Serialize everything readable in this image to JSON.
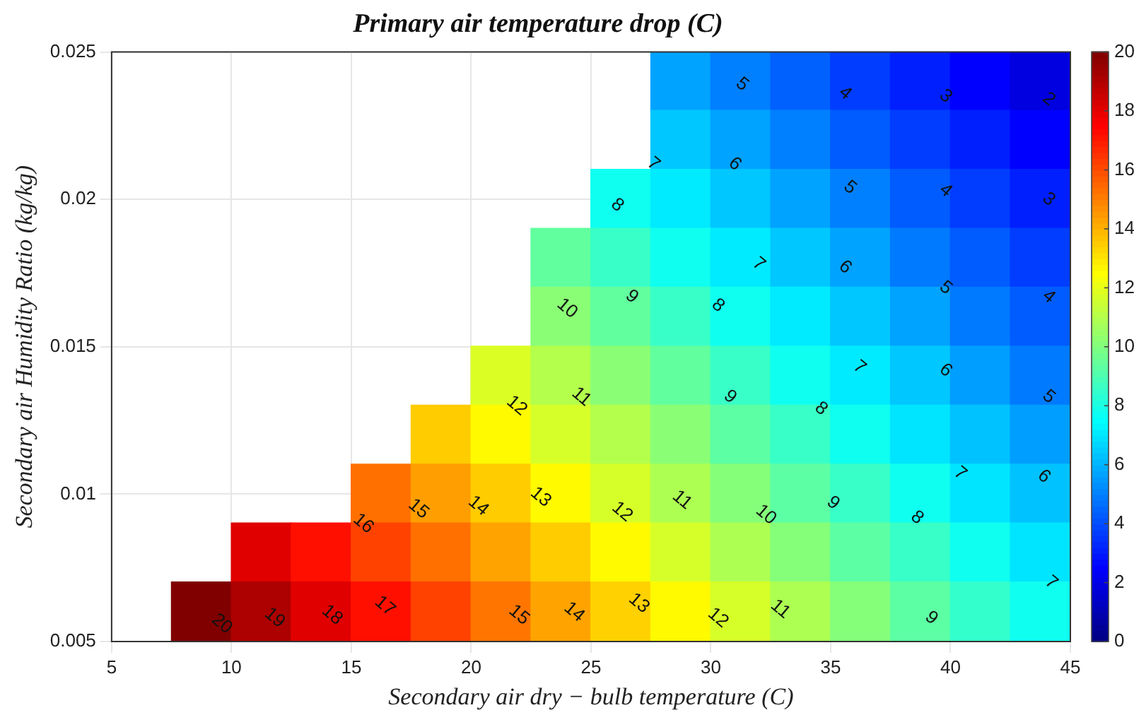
{
  "chart_data": {
    "type": "scatter",
    "title": "Primary air temperature drop (C)",
    "xlabel": "Secondary air dry − bulb temperature (C)",
    "ylabel": "Secondary air Humidity Ratio (kg/kg)",
    "marker": "square",
    "x": [
      28.75,
      31.25,
      33.75,
      36.25,
      38.75,
      41.25,
      43.75,
      28.75,
      31.25,
      33.75,
      36.25,
      38.75,
      41.25,
      43.75,
      26.25,
      28.75,
      31.25,
      33.75,
      36.25,
      38.75,
      41.25,
      43.75,
      23.75,
      26.25,
      28.75,
      31.25,
      33.75,
      36.25,
      38.75,
      41.25,
      43.75,
      23.75,
      26.25,
      28.75,
      31.25,
      33.75,
      36.25,
      38.75,
      41.25,
      43.75,
      21.25,
      23.75,
      26.25,
      28.75,
      31.25,
      33.75,
      36.25,
      38.75,
      41.25,
      43.75,
      18.75,
      21.25,
      23.75,
      26.25,
      28.75,
      31.25,
      33.75,
      36.25,
      38.75,
      41.25,
      43.75,
      16.25,
      18.75,
      21.25,
      23.75,
      26.25,
      28.75,
      31.25,
      33.75,
      36.25,
      38.75,
      41.25,
      43.75,
      11.25,
      13.75,
      16.25,
      18.75,
      21.25,
      23.75,
      26.25,
      28.75,
      31.25,
      33.75,
      36.25,
      38.75,
      41.25,
      43.75,
      8.75,
      11.25,
      13.75,
      16.25,
      18.75,
      21.25,
      23.75,
      26.25,
      28.75,
      31.25,
      33.75,
      36.25,
      38.75,
      41.25,
      43.75
    ],
    "values": [
      0.024,
      0.024,
      0.024,
      0.024,
      0.024,
      0.024,
      0.024,
      0.022,
      0.022,
      0.022,
      0.022,
      0.022,
      0.022,
      0.022,
      0.02,
      0.02,
      0.02,
      0.02,
      0.02,
      0.02,
      0.02,
      0.02,
      0.018,
      0.018,
      0.018,
      0.018,
      0.018,
      0.018,
      0.018,
      0.018,
      0.018,
      0.016,
      0.016,
      0.016,
      0.016,
      0.016,
      0.016,
      0.016,
      0.016,
      0.016,
      0.014,
      0.014,
      0.014,
      0.014,
      0.014,
      0.014,
      0.014,
      0.014,
      0.014,
      0.014,
      0.012,
      0.012,
      0.012,
      0.012,
      0.012,
      0.012,
      0.012,
      0.012,
      0.012,
      0.012,
      0.012,
      0.01,
      0.01,
      0.01,
      0.01,
      0.01,
      0.01,
      0.01,
      0.01,
      0.01,
      0.01,
      0.01,
      0.01,
      0.008,
      0.008,
      0.008,
      0.008,
      0.008,
      0.008,
      0.008,
      0.008,
      0.008,
      0.008,
      0.008,
      0.008,
      0.008,
      0.008,
      0.006,
      0.006,
      0.006,
      0.006,
      0.006,
      0.006,
      0.006,
      0.006,
      0.006,
      0.006,
      0.006,
      0.006,
      0.006,
      0.006,
      0.006
    ],
    "cvalues": [
      5.7,
      5.0,
      4.4,
      3.7,
      3.1,
      2.5,
      1.9,
      6.4,
      5.7,
      5.0,
      4.3,
      3.7,
      3.1,
      2.5,
      7.8,
      7.1,
      6.4,
      5.7,
      5.0,
      4.3,
      3.7,
      3.1,
      9.4,
      8.6,
      7.8,
      7.1,
      6.4,
      5.7,
      4.9,
      4.3,
      3.7,
      10.2,
      9.4,
      8.6,
      7.8,
      7.1,
      6.4,
      5.7,
      4.9,
      4.3,
      11.8,
      11.0,
      10.2,
      9.4,
      8.6,
      7.8,
      7.1,
      6.4,
      5.6,
      4.9,
      13.5,
      12.6,
      11.7,
      11.0,
      10.2,
      9.3,
      8.6,
      7.8,
      7.0,
      6.3,
      5.6,
      15.3,
      14.4,
      13.5,
      12.6,
      11.7,
      10.9,
      10.1,
      9.3,
      8.6,
      7.8,
      7.0,
      6.3,
      18.1,
      17.2,
      16.2,
      15.3,
      14.3,
      13.5,
      12.6,
      11.7,
      10.9,
      10.1,
      9.3,
      8.6,
      7.8,
      7.0,
      20.0,
      19.1,
      18.1,
      17.2,
      16.2,
      15.2,
      14.3,
      13.4,
      12.6,
      11.7,
      10.9,
      10.1,
      9.3,
      8.5,
      7.8
    ],
    "xlim": [
      5,
      45
    ],
    "xticks": [
      5,
      10,
      15,
      20,
      25,
      30,
      35,
      40,
      45
    ],
    "ylim": [
      0.005,
      0.025
    ],
    "yticks": [
      0.005,
      0.01,
      0.015,
      0.02,
      0.025
    ],
    "clim": [
      0,
      20
    ],
    "cticks": [
      0,
      2,
      4,
      6,
      8,
      10,
      12,
      14,
      16,
      18,
      20
    ],
    "grid": true,
    "legend": false,
    "annotations": [
      "20",
      "19",
      "18",
      "17",
      "16",
      "15",
      "15",
      "14",
      "14",
      "13",
      "13",
      "12",
      "12",
      "12",
      "11",
      "11",
      "11",
      "10",
      "10",
      "9",
      "9",
      "9",
      "9",
      "8",
      "8",
      "8",
      "8",
      "7",
      "7",
      "7",
      "7",
      "7",
      "6",
      "6",
      "6",
      "6",
      "5",
      "5",
      "5",
      "5",
      "4",
      "4",
      "4",
      "3",
      "3",
      "2"
    ]
  }
}
